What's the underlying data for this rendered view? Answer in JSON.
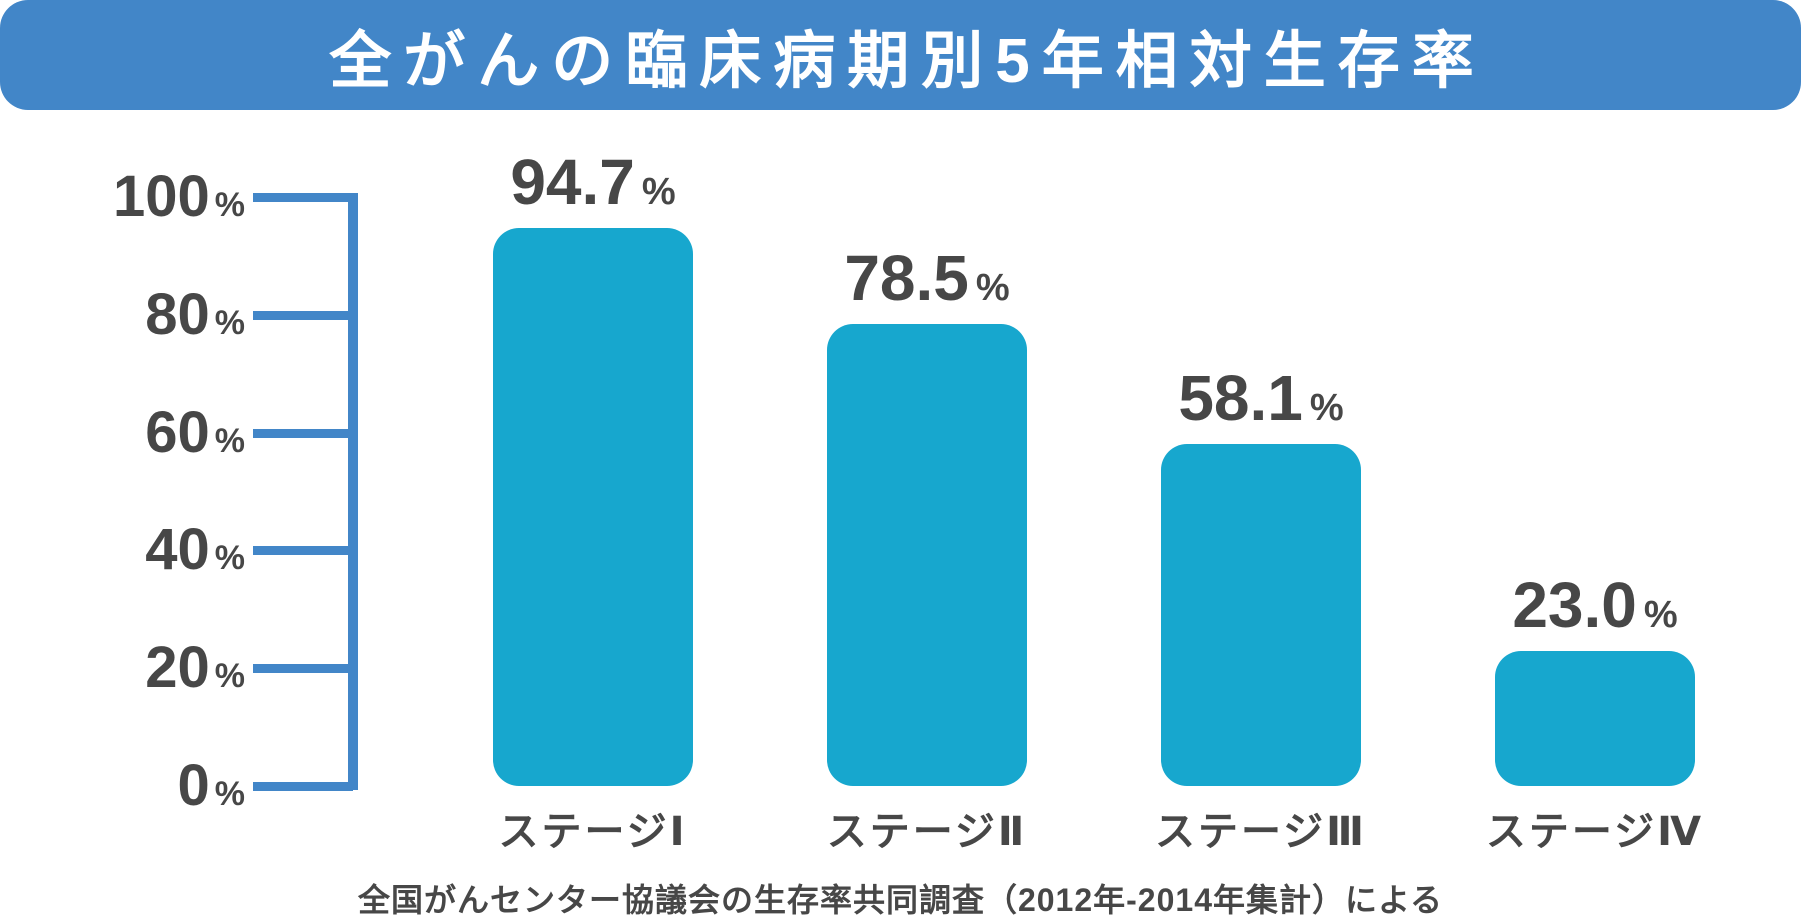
{
  "title_banner": {
    "title": "全がんの臨床病期別5年相対生存率"
  },
  "colors": {
    "banner_blue": "#4286c8",
    "axis_blue": "#4286c8",
    "bar_cyan": "#17a7ce",
    "text_dark": "#474747",
    "title_text": "#ffffff",
    "background": "#ffffff"
  },
  "y_axis": {
    "tick_labels": [
      "100",
      "80",
      "60",
      "40",
      "20",
      "0"
    ],
    "unit": "%"
  },
  "chart_data": {
    "type": "bar",
    "title": "全がんの臨床病期別5年相対生存率",
    "categories": [
      "ステージⅠ",
      "ステージⅡ",
      "ステージⅢ",
      "ステージⅣ"
    ],
    "values": [
      94.7,
      78.5,
      58.1,
      23.0
    ],
    "value_labels": [
      "94.7",
      "78.5",
      "58.1",
      "23.0"
    ],
    "unit": "%",
    "xlabel": "",
    "ylabel": "",
    "ylim": [
      0,
      100
    ],
    "ytick_step": 20,
    "grid": false,
    "legend": null,
    "bar_color": "#17a7ce",
    "source_note": "全国がんセンター協議会の生存率共同調査（2012年-2014年集計）による"
  },
  "footnote": {
    "text": "全国がんセンター協議会の生存率共同調査（2012年-2014年集計）による"
  }
}
